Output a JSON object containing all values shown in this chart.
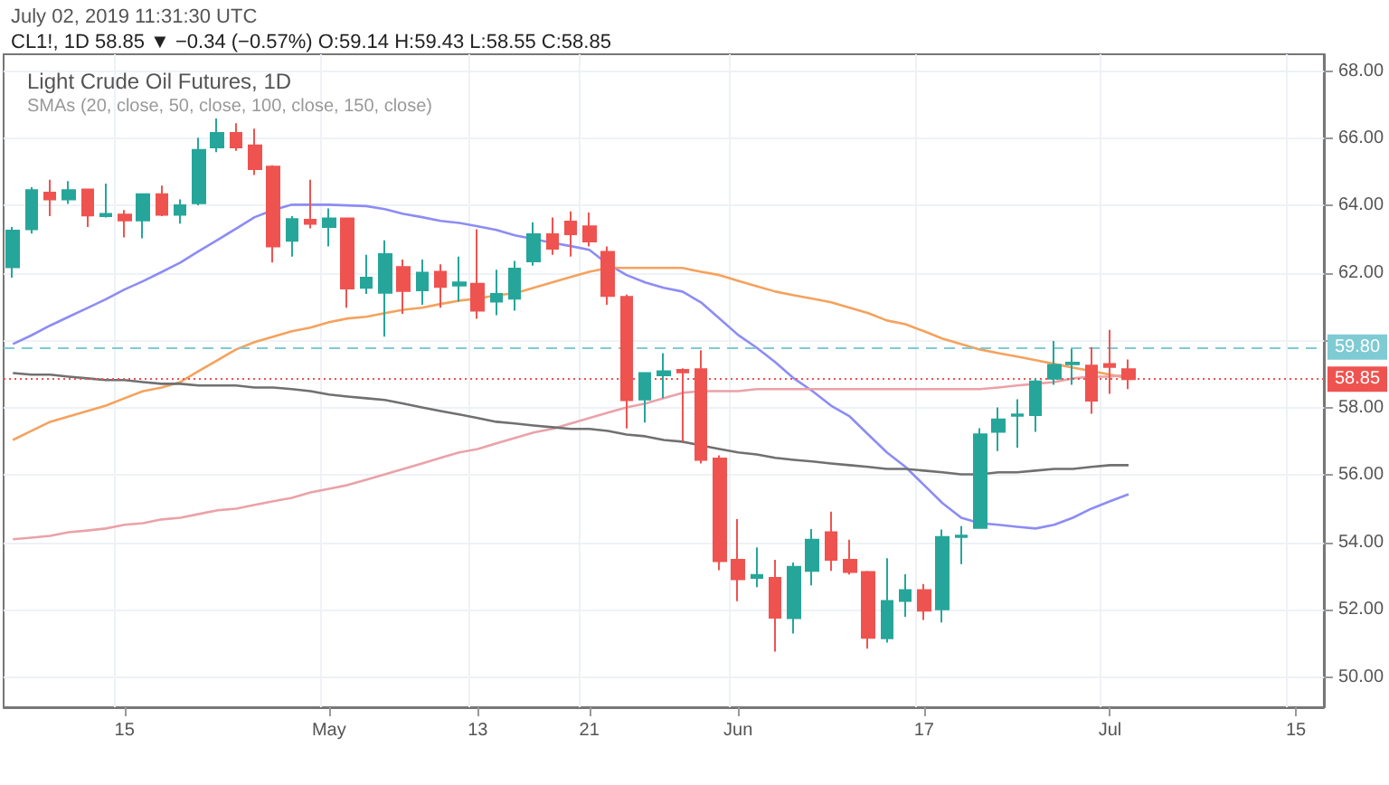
{
  "chart_data": {
    "type": "candlestick",
    "title": "Light Crude Oil Futures, 1D",
    "subtitle": "SMAs (20, close, 50, close, 100, close, 150, close)",
    "annotations": [
      "July 02, 2019 11:31:30 UTC",
      "CL1!, 1D 58.85 ▼ −0.34 (−0.57%) O:59.14 H:59.43 L:58.55 C:58.85"
    ],
    "categories": [
      null,
      null,
      null,
      null,
      null,
      null,
      "15",
      null,
      null,
      null,
      null,
      null,
      null,
      null,
      null,
      null,
      null,
      "May",
      null,
      null,
      null,
      null,
      null,
      null,
      null,
      "13",
      null,
      null,
      null,
      null,
      null,
      "21",
      null,
      null,
      null,
      null,
      null,
      null,
      null,
      "Jun",
      null,
      null,
      null,
      null,
      null,
      null,
      null,
      null,
      null,
      "17",
      null,
      null,
      null,
      null,
      null,
      null,
      null,
      null,
      null,
      "Jul",
      null,
      null,
      null,
      null,
      null,
      null,
      null,
      null,
      null,
      "15",
      null
    ],
    "ohlc": [
      [
        62.17,
        63.37,
        61.86,
        63.26
      ],
      [
        63.3,
        64.55,
        63.17,
        64.46
      ],
      [
        64.39,
        64.77,
        63.69,
        64.19
      ],
      [
        64.19,
        64.73,
        64.05,
        64.46
      ],
      [
        64.48,
        64.5,
        63.37,
        63.71
      ],
      [
        63.69,
        64.66,
        63.65,
        63.76
      ],
      [
        63.74,
        63.87,
        63.06,
        63.56
      ],
      [
        63.56,
        64.36,
        63.03,
        64.34
      ],
      [
        64.34,
        64.6,
        63.69,
        63.73
      ],
      [
        63.73,
        64.19,
        63.47,
        64.01
      ],
      [
        64.07,
        66.02,
        64.01,
        65.66
      ],
      [
        65.73,
        66.59,
        65.59,
        66.16
      ],
      [
        66.16,
        66.45,
        65.63,
        65.73
      ],
      [
        65.79,
        66.29,
        64.91,
        65.09
      ],
      [
        65.16,
        65.2,
        62.31,
        62.79
      ],
      [
        62.96,
        63.69,
        62.49,
        63.6
      ],
      [
        63.58,
        64.77,
        63.33,
        63.46
      ],
      [
        63.37,
        63.92,
        62.79,
        63.62
      ],
      [
        63.62,
        63.65,
        60.97,
        61.54
      ],
      [
        61.56,
        62.54,
        61.38,
        61.86
      ],
      [
        61.41,
        62.97,
        60.11,
        62.56
      ],
      [
        62.18,
        62.4,
        60.79,
        61.47
      ],
      [
        61.49,
        62.4,
        61.06,
        62.01
      ],
      [
        62.04,
        62.26,
        60.97,
        61.59
      ],
      [
        61.63,
        62.49,
        61.15,
        61.72
      ],
      [
        61.68,
        63.3,
        60.64,
        60.88
      ],
      [
        61.15,
        62.1,
        60.75,
        61.38
      ],
      [
        61.24,
        62.36,
        60.88,
        62.13
      ],
      [
        62.35,
        63.51,
        62.22,
        63.15
      ],
      [
        63.15,
        63.65,
        62.54,
        62.72
      ],
      [
        63.53,
        63.83,
        62.49,
        63.15
      ],
      [
        63.39,
        63.8,
        62.79,
        62.94
      ],
      [
        62.63,
        62.79,
        61.06,
        61.32
      ],
      [
        61.29,
        61.36,
        57.38,
        58.22
      ],
      [
        58.24,
        59.05,
        57.56,
        59.03
      ],
      [
        58.96,
        59.62,
        58.28,
        59.08
      ],
      [
        59.12,
        59.17,
        56.99,
        59.05
      ],
      [
        59.14,
        59.71,
        56.34,
        56.45
      ],
      [
        56.49,
        56.58,
        53.17,
        53.44
      ],
      [
        53.48,
        54.69,
        52.25,
        52.9
      ],
      [
        52.94,
        53.85,
        52.67,
        53.03
      ],
      [
        52.94,
        53.48,
        50.75,
        51.76
      ],
      [
        51.75,
        53.4,
        51.29,
        53.27
      ],
      [
        53.15,
        54.39,
        52.72,
        54.08
      ],
      [
        54.3,
        54.91,
        53.15,
        53.48
      ],
      [
        53.48,
        54.08,
        53.04,
        53.12
      ],
      [
        53.12,
        53.15,
        50.84,
        51.16
      ],
      [
        51.15,
        53.53,
        51.02,
        52.26
      ],
      [
        52.26,
        53.05,
        51.79,
        52.58
      ],
      [
        52.58,
        52.76,
        51.69,
        51.97
      ],
      [
        52.01,
        54.38,
        51.62,
        54.16
      ],
      [
        54.16,
        54.48,
        53.35,
        54.2
      ],
      [
        54.43,
        57.39,
        54.43,
        57.21
      ],
      [
        57.28,
        58.01,
        56.71,
        57.65
      ],
      [
        57.76,
        58.25,
        56.81,
        57.8
      ],
      [
        57.78,
        58.86,
        57.28,
        58.78
      ],
      [
        58.86,
        59.98,
        58.68,
        59.27
      ],
      [
        59.29,
        59.75,
        58.68,
        59.34
      ],
      [
        59.25,
        59.8,
        57.82,
        58.21
      ],
      [
        59.3,
        60.31,
        58.41,
        59.21
      ],
      [
        59.14,
        59.43,
        58.55,
        58.85
      ],
      null,
      null,
      null,
      null,
      null,
      null,
      null,
      null,
      null,
      null
    ],
    "colors": [
      "#26a69a",
      "#26a69a",
      "#ef5350",
      "#26a69a",
      "#ef5350",
      "#26a69a",
      "#ef5350",
      "#26a69a",
      "#ef5350",
      "#26a69a",
      "#26a69a",
      "#26a69a",
      "#ef5350",
      "#ef5350",
      "#ef5350",
      "#26a69a",
      "#ef5350",
      "#26a69a",
      "#ef5350",
      "#26a69a",
      "#26a69a",
      "#ef5350",
      "#26a69a",
      "#ef5350",
      "#26a69a",
      "#ef5350",
      "#26a69a",
      "#26a69a",
      "#26a69a",
      "#ef5350",
      "#ef5350",
      "#ef5350",
      "#ef5350",
      "#ef5350",
      "#26a69a",
      "#26a69a",
      "#ef5350",
      "#ef5350",
      "#ef5350",
      "#ef5350",
      "#26a69a",
      "#ef5350",
      "#26a69a",
      "#26a69a",
      "#ef5350",
      "#ef5350",
      "#ef5350",
      "#26a69a",
      "#26a69a",
      "#ef5350",
      "#26a69a",
      "#26a69a",
      "#26a69a",
      "#26a69a",
      "#26a69a",
      "#26a69a",
      "#26a69a",
      "#26a69a",
      "#ef5350",
      "#ef5350",
      "#ef5350",
      null,
      null,
      null,
      null,
      null,
      null,
      null,
      null,
      null,
      null
    ],
    "series": [
      {
        "type": "line",
        "color": "#8c8cf5",
        "values": [
          59.89,
          60.15,
          60.44,
          60.7,
          60.96,
          61.22,
          61.51,
          61.76,
          62.03,
          62.31,
          62.65,
          62.98,
          63.32,
          63.66,
          63.87,
          64.03,
          64.03,
          64.03,
          64.01,
          63.99,
          63.9,
          63.76,
          63.66,
          63.55,
          63.49,
          63.39,
          63.28,
          63.12,
          63.01,
          62.9,
          62.8,
          62.69,
          62.26,
          61.94,
          61.72,
          61.56,
          61.45,
          61.13,
          60.65,
          60.16,
          59.78,
          59.35,
          58.87,
          58.49,
          58.06,
          57.74,
          57.2,
          56.67,
          56.24,
          55.7,
          55.16,
          54.73,
          54.57,
          54.52,
          54.46,
          54.41,
          54.52,
          54.73,
          55.0,
          55.22,
          55.43,
          null,
          null,
          null,
          null,
          null,
          null,
          null,
          null,
          null,
          null
        ]
      },
      {
        "type": "line",
        "color": "#f5a25d",
        "values": [
          57.04,
          57.31,
          57.58,
          57.74,
          57.9,
          58.06,
          58.28,
          58.49,
          58.6,
          58.76,
          59.09,
          59.41,
          59.73,
          59.95,
          60.11,
          60.27,
          60.38,
          60.54,
          60.65,
          60.7,
          60.81,
          60.91,
          60.97,
          61.08,
          61.18,
          61.24,
          61.34,
          61.4,
          61.56,
          61.72,
          61.88,
          62.04,
          62.15,
          62.15,
          62.15,
          62.15,
          62.15,
          62.04,
          61.94,
          61.77,
          61.61,
          61.45,
          61.34,
          61.24,
          61.13,
          60.97,
          60.81,
          60.59,
          60.48,
          60.27,
          60.05,
          59.89,
          59.73,
          59.62,
          59.52,
          59.41,
          59.3,
          59.19,
          59.09,
          58.98,
          58.87,
          null,
          null,
          null,
          null,
          null,
          null,
          null,
          null,
          null,
          null
        ]
      },
      {
        "type": "line",
        "color": "#eaa2a8",
        "values": [
          54.09,
          54.14,
          54.19,
          54.3,
          54.35,
          54.41,
          54.52,
          54.57,
          54.68,
          54.73,
          54.84,
          54.95,
          55.0,
          55.11,
          55.22,
          55.32,
          55.48,
          55.59,
          55.7,
          55.86,
          56.02,
          56.18,
          56.34,
          56.51,
          56.67,
          56.77,
          56.94,
          57.1,
          57.26,
          57.37,
          57.53,
          57.69,
          57.85,
          58.01,
          58.12,
          58.28,
          58.44,
          58.49,
          58.49,
          58.49,
          58.55,
          58.55,
          58.55,
          58.55,
          58.55,
          58.55,
          58.55,
          58.55,
          58.55,
          58.55,
          58.55,
          58.55,
          58.55,
          58.6,
          58.66,
          58.71,
          58.76,
          58.87,
          58.92,
          58.92,
          58.98,
          null,
          null,
          null,
          null,
          null,
          null,
          null,
          null,
          null,
          null
        ]
      },
      {
        "type": "line",
        "color": "#707070",
        "values": [
          59.03,
          58.98,
          58.98,
          58.92,
          58.87,
          58.82,
          58.82,
          58.76,
          58.71,
          58.71,
          58.66,
          58.66,
          58.66,
          58.6,
          58.6,
          58.55,
          58.49,
          58.39,
          58.33,
          58.28,
          58.23,
          58.12,
          58.01,
          57.9,
          57.8,
          57.69,
          57.58,
          57.53,
          57.47,
          57.42,
          57.37,
          57.37,
          57.31,
          57.2,
          57.15,
          57.04,
          56.99,
          56.88,
          56.77,
          56.67,
          56.61,
          56.51,
          56.45,
          56.4,
          56.34,
          56.29,
          56.24,
          56.18,
          56.18,
          56.13,
          56.08,
          56.02,
          56.02,
          56.08,
          56.08,
          56.13,
          56.18,
          56.18,
          56.24,
          56.29,
          56.29,
          null,
          null,
          null,
          null,
          null,
          null,
          null,
          null,
          null,
          null
        ]
      }
    ],
    "ylim": [
      49.1,
      68.5
    ],
    "yticks": [
      {
        "value": 50,
        "label": "50.00"
      },
      {
        "value": 52,
        "label": "52.00"
      },
      {
        "value": 54,
        "label": "54.00"
      },
      {
        "value": 56,
        "label": "56.00"
      },
      {
        "value": 58,
        "label": "58.00"
      },
      {
        "value": 60,
        "label": null
      },
      {
        "value": 62,
        "label": "62.00"
      },
      {
        "value": 64,
        "label": "64.00"
      },
      {
        "value": 66,
        "label": "66.00"
      },
      {
        "value": 68,
        "label": "68.00"
      }
    ],
    "ref_lines": [
      {
        "axis": "y",
        "value": 59.8,
        "label": "59.80",
        "color": "#7fcbd4",
        "line_style": "dashed"
      },
      {
        "axis": "y",
        "value": 58.85,
        "label": "58.85",
        "color": "#ef5350",
        "line_style": "dotted"
      }
    ],
    "grid": true,
    "marker": "none"
  }
}
